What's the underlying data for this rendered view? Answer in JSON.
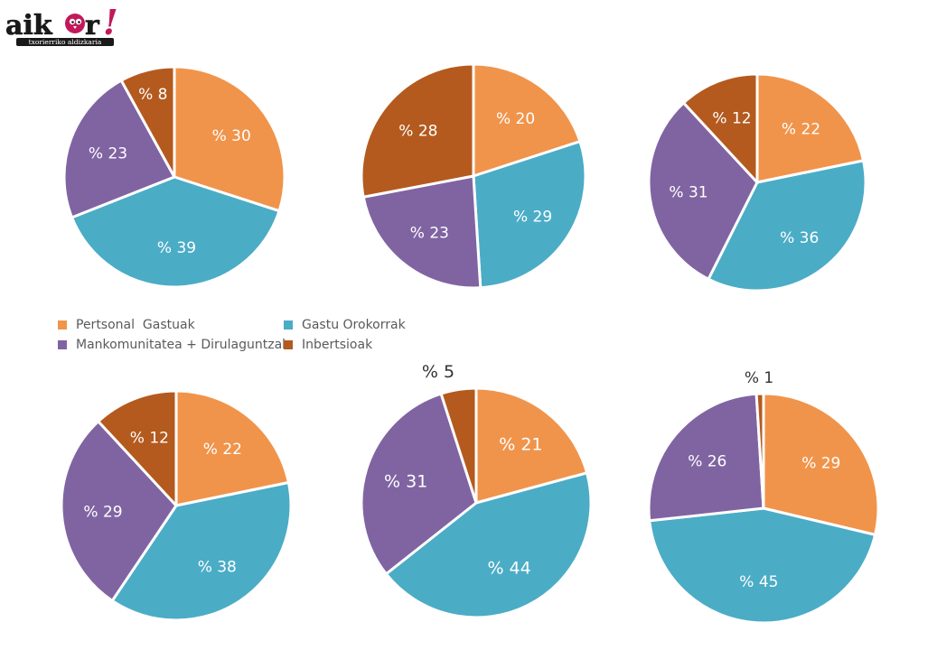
{
  "logo": {
    "text": "aikor!",
    "subtitle": "txorierriko aldizkaria"
  },
  "colors": {
    "pertsonal": "#f0944b",
    "gastu": "#4bacc6",
    "mankomunitatea": "#8064a2",
    "inbertsioak": "#b45a1e",
    "label_inside": "#ffffff",
    "label_outside": "#333333"
  },
  "legend": [
    {
      "label": "Pertsonal  Gastuak",
      "color": "#f0944b"
    },
    {
      "label": "Gastu Orokorrak",
      "color": "#4bacc6"
    },
    {
      "label": "Mankomunitatea + Dirulaguntzak",
      "color": "#8064a2"
    },
    {
      "label": "Inbertsioak",
      "color": "#b45a1e"
    }
  ],
  "chart_data": [
    {
      "type": "pie",
      "title": "",
      "categories": [
        "Pertsonal  Gastuak",
        "Gastu Orokorrak",
        "Mankomunitatea + Dirulaguntzak",
        "Inbertsioak"
      ],
      "values": [
        30,
        39,
        23,
        8
      ],
      "labels": [
        "% 30",
        "% 39",
        "% 23",
        "% 8"
      ]
    },
    {
      "type": "pie",
      "title": "",
      "categories": [
        "Pertsonal  Gastuak",
        "Gastu Orokorrak",
        "Mankomunitatea + Dirulaguntzak",
        "Inbertsioak"
      ],
      "values": [
        20,
        29,
        23,
        28
      ],
      "labels": [
        "% 20",
        "% 29",
        "% 23",
        "% 28"
      ]
    },
    {
      "type": "pie",
      "title": "",
      "categories": [
        "Pertsonal  Gastuak",
        "Gastu Orokorrak",
        "Mankomunitatea + Dirulaguntzak",
        "Inbertsioak"
      ],
      "values": [
        22,
        36,
        31,
        12
      ],
      "labels": [
        "% 22",
        "% 36",
        "% 31",
        "% 12"
      ]
    },
    {
      "type": "pie",
      "title": "",
      "categories": [
        "Pertsonal  Gastuak",
        "Gastu Orokorrak",
        "Mankomunitatea + Dirulaguntzak",
        "Inbertsioak"
      ],
      "values": [
        22,
        38,
        29,
        12
      ],
      "labels": [
        "% 22",
        "% 38",
        "% 29",
        "% 12"
      ]
    },
    {
      "type": "pie",
      "title": "",
      "categories": [
        "Pertsonal  Gastuak",
        "Gastu Orokorrak",
        "Mankomunitatea + Dirulaguntzak",
        "Inbertsioak"
      ],
      "values": [
        21,
        44,
        31,
        5
      ],
      "labels": [
        "% 21",
        "% 44",
        "% 31",
        "% 5"
      ],
      "outside_label_index": 3
    },
    {
      "type": "pie",
      "title": "",
      "categories": [
        "Pertsonal  Gastuak",
        "Gastu Orokorrak",
        "Mankomunitatea + Dirulaguntzak",
        "Inbertsioak"
      ],
      "values": [
        29,
        45,
        26,
        1
      ],
      "labels": [
        "% 29",
        "% 45",
        "% 26",
        "% 1"
      ],
      "outside_label_index": 3
    }
  ]
}
